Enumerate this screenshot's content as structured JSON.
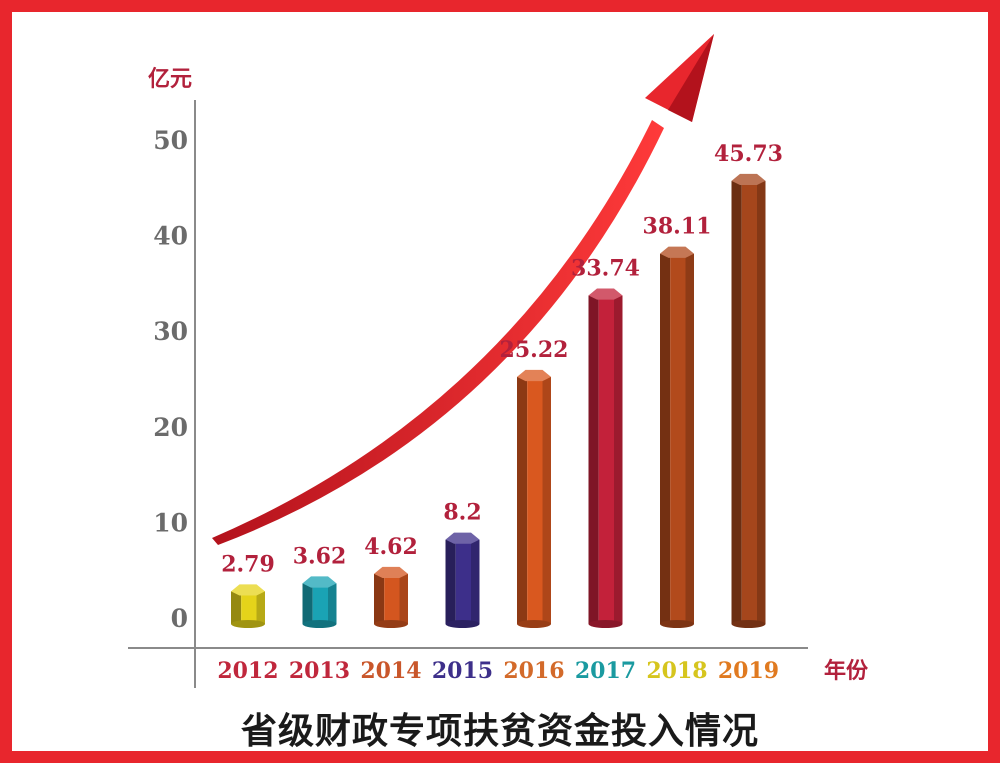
{
  "chart_data": {
    "type": "bar",
    "title": "省级财政专项扶贫资金投入情况",
    "ylabel": "亿元",
    "xlabel": "年份",
    "ylim": [
      0,
      50
    ],
    "yticks": [
      0,
      10,
      20,
      30,
      40,
      50
    ],
    "categories": [
      "2012",
      "2013",
      "2014",
      "2015",
      "2016",
      "2017",
      "2018",
      "2019"
    ],
    "values": [
      2.79,
      3.62,
      4.62,
      8.2,
      25.22,
      33.74,
      38.11,
      45.73
    ],
    "value_labels": [
      "2.79",
      "3.62",
      "4.62",
      "8.2",
      "25.22",
      "33.74",
      "38.11",
      "45.73"
    ],
    "bar_colors": [
      "#e5d31a",
      "#1aa3b4",
      "#d4561f",
      "#3d2f8a",
      "#d9581f",
      "#c3213a",
      "#b24a1c",
      "#a5461c"
    ],
    "category_label_colors": [
      "#c0273c",
      "#c0273c",
      "#c9562a",
      "#3d2f8a",
      "#d36a2a",
      "#1a9aa0",
      "#d6c51e",
      "#e07a20"
    ],
    "grid": false,
    "trend_arrow": true
  },
  "colors": {
    "frame": "#e8262d",
    "value_label": "#b2213c",
    "axis_text": "#6b6b6b",
    "unit_text": "#b2213c",
    "arrow": "#e8262d"
  }
}
